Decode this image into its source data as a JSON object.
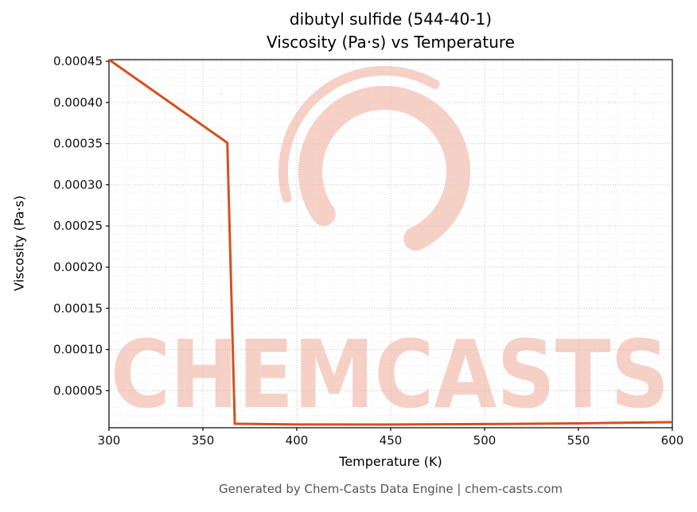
{
  "chart_data": {
    "type": "line",
    "title": "dibutyl sulfide (544-40-1) — Viscosity (Pa·s) vs Temperature",
    "title_line1": "dibutyl sulfide (544-40-1)",
    "title_line2": "Viscosity (Pa·s) vs Temperature",
    "xlabel": "Temperature (K)",
    "ylabel": "Viscosity (Pa·s)",
    "xlim": [
      300,
      600
    ],
    "ylim": [
      5e-06,
      0.000452
    ],
    "x_ticks": [
      300,
      350,
      400,
      450,
      500,
      550,
      600
    ],
    "x_tick_labels": [
      "300",
      "350",
      "400",
      "450",
      "500",
      "550",
      "600"
    ],
    "y_ticks": [
      5e-05,
      0.0001,
      0.00015,
      0.0002,
      0.00025,
      0.0003,
      0.00035,
      0.0004,
      0.00045
    ],
    "y_tick_labels": [
      "0.00005",
      "0.00010",
      "0.00015",
      "0.00020",
      "0.00025",
      "0.00030",
      "0.00035",
      "0.00040",
      "0.00045"
    ],
    "minor_x_step": 10,
    "minor_y_step": 1e-05,
    "grid": true,
    "legend": false,
    "line_color": "#d4511e",
    "series": [
      {
        "name": "viscosity",
        "points": [
          [
            300,
            0.000452
          ],
          [
            363,
            0.000351
          ],
          [
            367,
            9.8e-06
          ],
          [
            400,
            9e-06
          ],
          [
            450,
            8.9e-06
          ],
          [
            500,
            9.4e-06
          ],
          [
            550,
            1.03e-05
          ],
          [
            600,
            1.18e-05
          ]
        ]
      }
    ]
  },
  "watermark": {
    "text": "CHEMCASTS",
    "color": "rgba(222, 82, 47, 0.28)"
  },
  "footer": {
    "text": "Generated by Chem-Casts Data Engine | chem-casts.com"
  }
}
